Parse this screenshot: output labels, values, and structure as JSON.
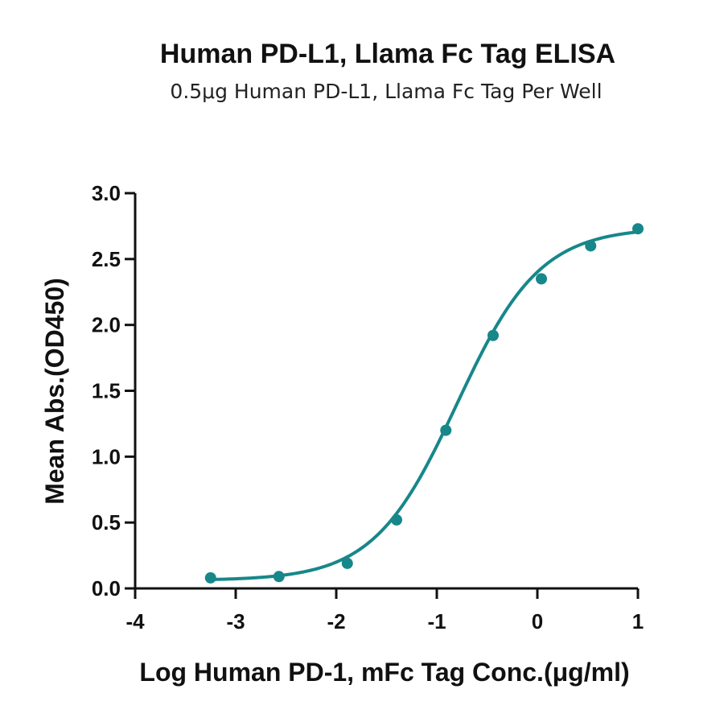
{
  "chart_data": {
    "type": "scatter",
    "title": "Human PD-L1, Llama Fc Tag ELISA",
    "subtitle": "0.5μg Human PD-L1, Llama Fc Tag Per Well",
    "xlabel": "Log Human PD-1, mFc Tag Conc.(μg/ml)",
    "ylabel": "Mean Abs.(OD450)",
    "xlim": [
      -4,
      1
    ],
    "ylim": [
      0,
      3
    ],
    "x_ticks": [
      "-4",
      "-3",
      "-2",
      "-1",
      "0",
      "1"
    ],
    "y_ticks": [
      "0.0",
      "0.5",
      "1.0",
      "1.5",
      "2.0",
      "2.5",
      "3.0"
    ],
    "grid": false,
    "legend": "none",
    "series": [
      {
        "x": [
          -3.25,
          -2.57,
          -1.89,
          -1.4,
          -0.91,
          -0.44,
          0.04,
          0.53,
          1.0
        ],
        "y": [
          0.08,
          0.09,
          0.19,
          0.52,
          1.2,
          1.92,
          2.35,
          2.6,
          2.73
        ],
        "color": "#17878a",
        "fit": "four-parameter logistic"
      }
    ]
  }
}
